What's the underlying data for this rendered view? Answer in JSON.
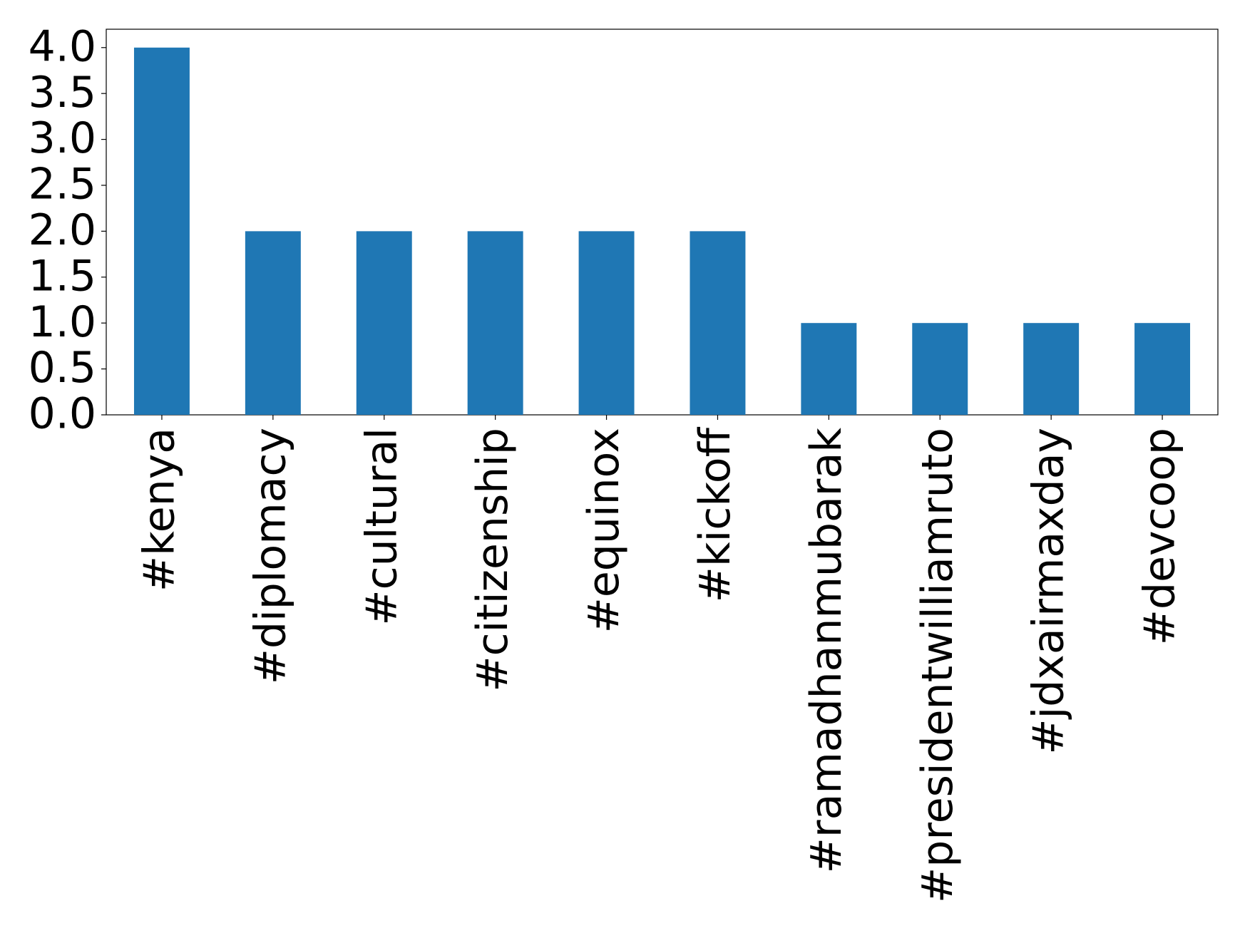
{
  "chart_data": {
    "type": "bar",
    "categories": [
      "#kenya",
      "#diplomacy",
      "#cultural",
      "#citizenship",
      "#equinox",
      "#kickoff",
      "#ramadhanmubarak",
      "#presidentwilliamruto",
      "#jdxairmaxday",
      "#devcoop"
    ],
    "values": [
      4,
      2,
      2,
      2,
      2,
      2,
      1,
      1,
      1,
      1
    ],
    "color": "#1f77b4",
    "ylim": [
      0,
      4.2
    ],
    "yticks": [
      {
        "value": 0,
        "label": "0.0"
      },
      0.5,
      {
        "value": 1,
        "label": "1.0"
      },
      1.5,
      {
        "value": 2,
        "label": "2.0"
      },
      2.5,
      {
        "value": 3,
        "label": "3.0"
      },
      3.5,
      {
        "value": 4,
        "label": "4.0"
      }
    ],
    "grid": false
  }
}
